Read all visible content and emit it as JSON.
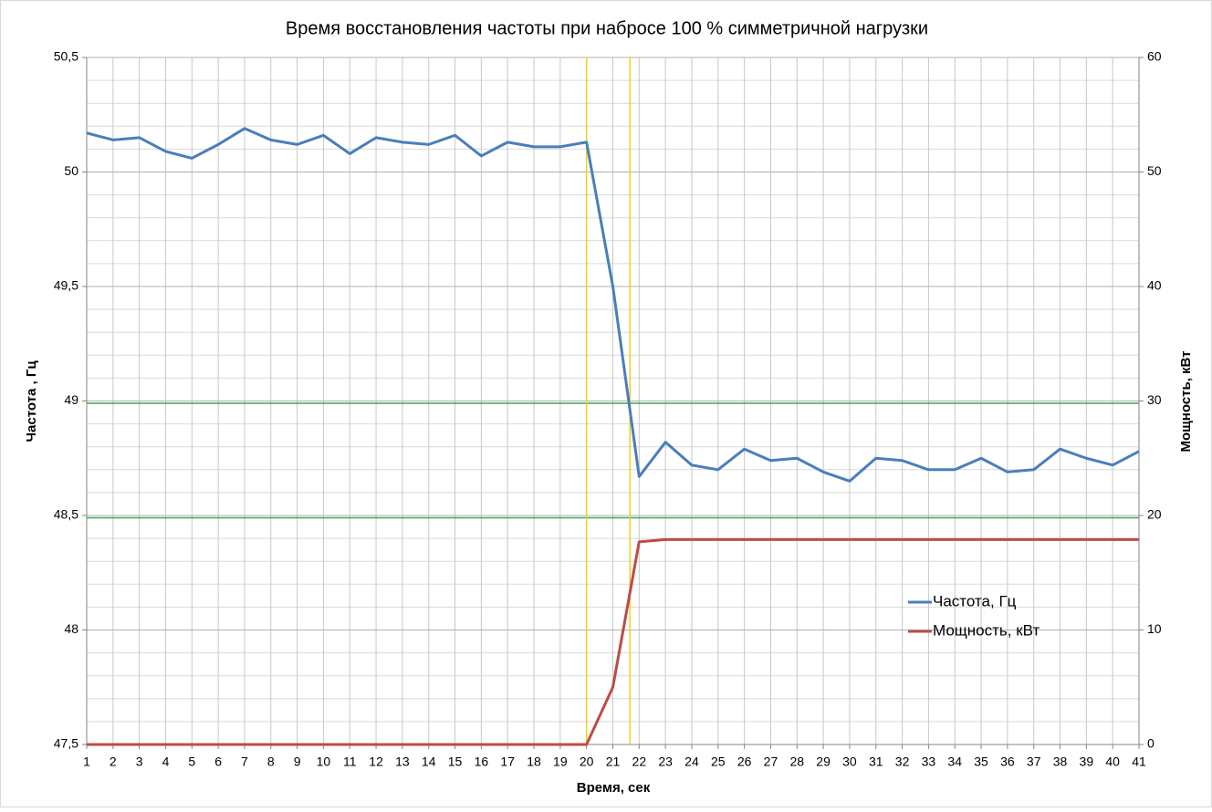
{
  "chart_data": {
    "type": "line",
    "title": "Время восстановления частоты при набросе 100 % симметричной нагрузки",
    "x_label": "Время, сек",
    "y_label": "Частота , Гц",
    "y2_label": "Мощность, кВт",
    "x": [
      1,
      2,
      3,
      4,
      5,
      6,
      7,
      8,
      9,
      10,
      11,
      12,
      13,
      14,
      15,
      16,
      17,
      18,
      19,
      20,
      21,
      22,
      23,
      24,
      25,
      26,
      27,
      28,
      29,
      30,
      31,
      32,
      33,
      34,
      35,
      36,
      37,
      38,
      39,
      40,
      41
    ],
    "xlim": [
      1,
      41
    ],
    "xticks": [
      1,
      2,
      3,
      4,
      5,
      6,
      7,
      8,
      9,
      10,
      11,
      12,
      13,
      14,
      15,
      16,
      17,
      18,
      19,
      20,
      21,
      22,
      23,
      24,
      25,
      26,
      27,
      28,
      29,
      30,
      31,
      32,
      33,
      34,
      35,
      36,
      37,
      38,
      39,
      40,
      41
    ],
    "ylim": [
      47.5,
      50.5
    ],
    "yticks": [
      {
        "value": 47.5,
        "label": "47,5"
      },
      48,
      {
        "value": 48.5,
        "label": "48,5"
      },
      49,
      {
        "value": 49.5,
        "label": "49,5"
      },
      50,
      {
        "value": 50.5,
        "label": "50,5"
      }
    ],
    "y2lim": [
      0,
      60
    ],
    "y2ticks": [
      0,
      10,
      20,
      30,
      40,
      50,
      60
    ],
    "grid": true,
    "legend": "center right",
    "series": [
      {
        "name": "Частота, Гц",
        "color": "#4a7ebb",
        "values": [
          50.17,
          50.14,
          50.15,
          50.09,
          50.06,
          50.12,
          50.19,
          50.14,
          50.12,
          50.16,
          50.08,
          50.15,
          50.13,
          50.12,
          50.16,
          50.07,
          50.13,
          50.11,
          50.11,
          50.13,
          49.5,
          48.67,
          48.82,
          48.72,
          48.7,
          48.79,
          48.74,
          48.75,
          48.69,
          48.65,
          48.75,
          48.74,
          48.7,
          48.7,
          48.75,
          48.69,
          48.7,
          48.79,
          48.75,
          48.72,
          48.78
        ]
      },
      {
        "name": "Мощность, кВт",
        "color": "#be4b48",
        "axis": "y2",
        "values": [
          0,
          0,
          0,
          0,
          0,
          0,
          0,
          0,
          0,
          0,
          0,
          0,
          0,
          0,
          0,
          0,
          0,
          0,
          0,
          0,
          5,
          17.7,
          17.9,
          17.9,
          17.9,
          17.9,
          17.9,
          17.9,
          17.9,
          17.9,
          17.9,
          17.9,
          17.9,
          17.9,
          17.9,
          17.9,
          17.9,
          17.9,
          17.9,
          17.9,
          17.9
        ]
      }
    ],
    "hlines": {
      "color": "#3aa655",
      "values": [
        48.99,
        48.49
      ]
    },
    "vlines": {
      "color": "#f0d020",
      "values": [
        20,
        21.65
      ]
    }
  }
}
